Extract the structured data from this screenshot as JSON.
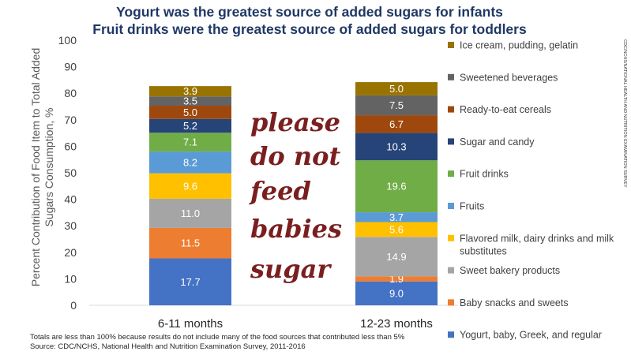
{
  "chart_data": {
    "type": "bar",
    "stacked": true,
    "title": [
      "Yogurt was the greatest source of added sugars for infants",
      "Fruit drinks were the greatest source of added sugars for toddlers"
    ],
    "ylabel": [
      "Percent Contribution of Food Item to Total Added",
      "Sugars Consumption, %"
    ],
    "xlabel": "",
    "ylim": [
      0,
      100
    ],
    "yticks": [
      "0",
      "10",
      "20",
      "30",
      "40",
      "50",
      "60",
      "70",
      "80",
      "90",
      "100"
    ],
    "grid": false,
    "legend_position": "right",
    "categories": [
      "6-11 months",
      "12-23 months"
    ],
    "series": [
      {
        "name": "Yogurt, baby, Greek, and regular",
        "color": "#4472c4",
        "label_color": "#ffffff",
        "values": [
          17.7,
          9.0
        ]
      },
      {
        "name": "Baby snacks and sweets",
        "color": "#ed7d31",
        "label_color": "#ffffff",
        "values": [
          11.5,
          1.9
        ]
      },
      {
        "name": "Sweet bakery products",
        "color": "#a5a5a5",
        "label_color": "#ffffff",
        "values": [
          11.0,
          14.9
        ]
      },
      {
        "name": "Flavored milk, dairy drinks and milk substitutes",
        "legend_lines": [
          "Flavored milk, dairy drinks and milk",
          "substitutes"
        ],
        "color": "#ffc000",
        "label_color": "#ffffff",
        "values": [
          9.6,
          5.6
        ]
      },
      {
        "name": "Fruits",
        "color": "#5b9bd5",
        "label_color": "#ffffff",
        "values": [
          8.2,
          3.7
        ]
      },
      {
        "name": "Fruit drinks",
        "color": "#70ad47",
        "label_color": "#ffffff",
        "values": [
          7.1,
          19.6
        ]
      },
      {
        "name": "Sugar and candy",
        "color": "#264478",
        "label_color": "#ffffff",
        "values": [
          5.2,
          10.3
        ]
      },
      {
        "name": "Ready-to-eat cereals",
        "color": "#9e480e",
        "label_color": "#ffffff",
        "values": [
          5.0,
          6.7
        ]
      },
      {
        "name": "Sweetened beverages",
        "color": "#636363",
        "label_color": "#ffffff",
        "values": [
          3.5,
          7.5
        ]
      },
      {
        "name": "Ice cream, pudding, gelatin",
        "color": "#997300",
        "label_color": "#ffffff",
        "values": [
          3.9,
          5.0
        ]
      }
    ],
    "value_labels": [
      [
        "17.7",
        "11.5",
        "11.0",
        "9.6",
        "8.2",
        "7.1",
        "5.2",
        "5.0",
        "3.5",
        "3.9"
      ],
      [
        "9.0",
        "1.9",
        "14.9",
        "5.6",
        "3.7",
        "19.6",
        "10.3",
        "6.7",
        "7.5",
        "5.0"
      ]
    ],
    "footnotes": [
      "Totals are less than 100% because results do not include many of the food sources that contributed less than 5%",
      "Source: CDC/NCHS, National Health and Nutrition Examination Survey, 2011-2016"
    ],
    "credit": "CDC/NCHS/NATIONAL HEALTH AND NUTRITION EXAMINATION SURVEY"
  },
  "overlay_text": [
    "please",
    "do not",
    "feed",
    "babies",
    "sugar"
  ]
}
